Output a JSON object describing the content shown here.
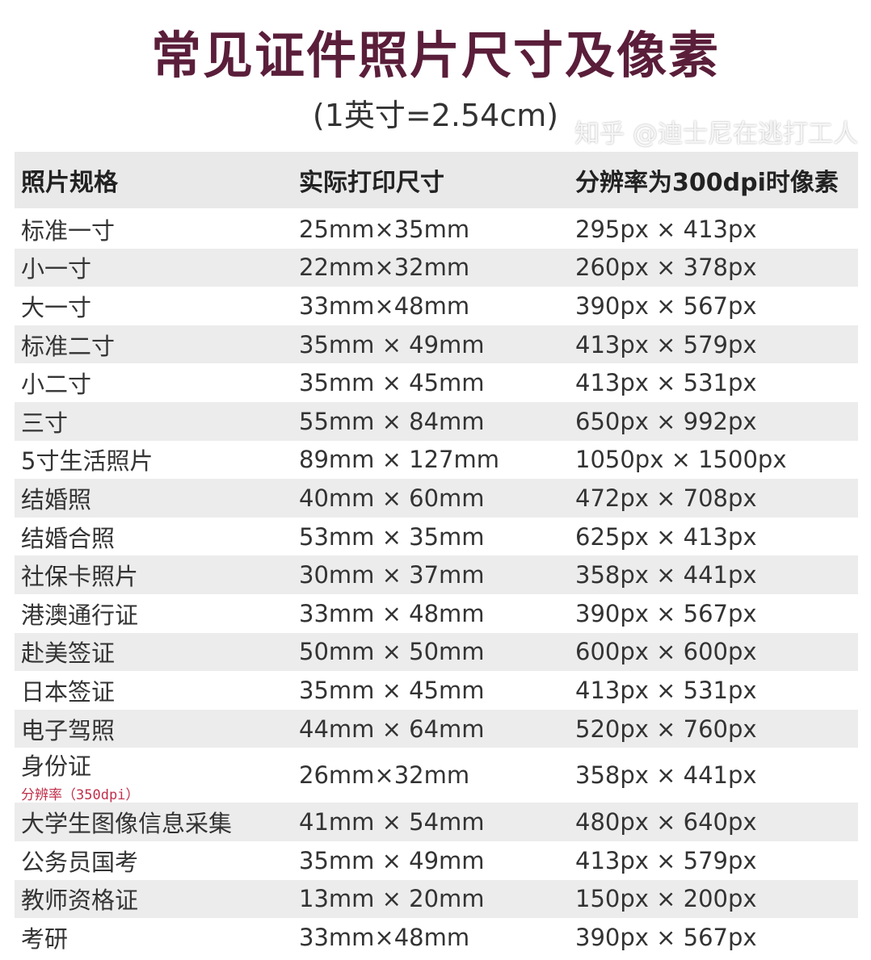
{
  "title": "常见证件照片尺寸及像素",
  "subtitle": "(1英寸=2.54cm)",
  "table": {
    "headers": [
      "照片规格",
      "实际打印尺寸",
      "分辨率为300dpi时像素"
    ],
    "rows": [
      {
        "name": "标准一寸",
        "print": "25mm×35mm",
        "pixels": "295px × 413px"
      },
      {
        "name": "小一寸",
        "print": "22mm×32mm",
        "pixels": "260px × 378px"
      },
      {
        "name": "大一寸",
        "print": "33mm×48mm",
        "pixels": "390px × 567px"
      },
      {
        "name": "标准二寸",
        "print": "35mm × 49mm",
        "pixels": "413px × 579px"
      },
      {
        "name": "小二寸",
        "print": "35mm × 45mm",
        "pixels": "413px × 531px"
      },
      {
        "name": "三寸",
        "print": "55mm × 84mm",
        "pixels": "650px × 992px"
      },
      {
        "name": "5寸生活照片",
        "print": "89mm × 127mm",
        "pixels": "1050px × 1500px"
      },
      {
        "name": "结婚照",
        "print": "40mm × 60mm",
        "pixels": "472px × 708px"
      },
      {
        "name": "结婚合照",
        "print": "53mm × 35mm",
        "pixels": "625px × 413px"
      },
      {
        "name": "社保卡照片",
        "print": "30mm × 37mm",
        "pixels": "358px × 441px"
      },
      {
        "name": "港澳通行证",
        "print": "33mm × 48mm",
        "pixels": "390px × 567px"
      },
      {
        "name": "赴美签证",
        "print": "50mm × 50mm",
        "pixels": "600px × 600px"
      },
      {
        "name": "日本签证",
        "print": "35mm × 45mm",
        "pixels": "413px × 531px"
      },
      {
        "name": "电子驾照",
        "print": "44mm × 64mm",
        "pixels": "520px × 760px"
      },
      {
        "name": "身份证",
        "note": "分辨率（350dpi）",
        "print": "26mm×32mm",
        "pixels": "358px × 441px"
      },
      {
        "name": "大学生图像信息采集",
        "print": "41mm × 54mm",
        "pixels": "480px × 640px"
      },
      {
        "name": "公务员国考",
        "print": "35mm × 49mm",
        "pixels": "413px × 579px"
      },
      {
        "name": "教师资格证",
        "print": "13mm × 20mm",
        "pixels": "150px × 200px"
      },
      {
        "name": "考研",
        "print": "33mm×48mm",
        "pixels": "390px × 567px"
      }
    ]
  },
  "watermark": "知乎 @迪士尼在逃打工人",
  "colors": {
    "title": "#5a1e3a",
    "stripe": "#ececec",
    "note": "#c0304a"
  }
}
